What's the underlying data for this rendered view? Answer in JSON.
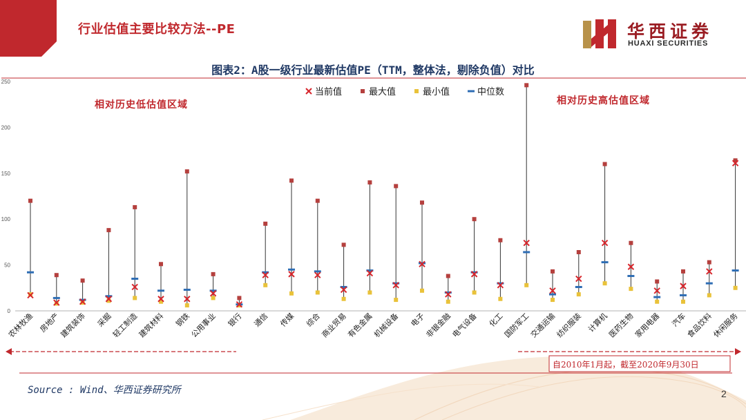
{
  "header": {
    "slide_title": "行业估值主要比较方法--PE",
    "logo_name": "华西证券",
    "logo_en": "HUAXI SECURITIES"
  },
  "colors": {
    "brand_red": "#c0282d",
    "current": "#d7262c",
    "max": "#b5403e",
    "min": "#e9c23a",
    "median": "#2e6db4",
    "title_navy": "#1f3864"
  },
  "legend": {
    "current": "当前值",
    "max": "最大值",
    "min": "最小值",
    "median": "中位数"
  },
  "annotations": {
    "low_zone": "相对历史低估值区域",
    "high_zone": "相对历史高估值区域",
    "date_range": "自2010年1月起，截至2020年9月30日"
  },
  "footer": {
    "source": "Source : Wind、华西证券研究所",
    "page_number": "2"
  },
  "chart_data": {
    "type": "scatter",
    "title": "图表2：A股一级行业最新估值PE（TTM，整体法，剔除负值）对比",
    "ylim": [
      0,
      250
    ],
    "yticks": [
      0,
      50,
      100,
      150,
      200,
      250
    ],
    "grid": false,
    "legend_position": "top-center",
    "categories": [
      "农林牧渔",
      "房地产",
      "建筑装饰",
      "采掘",
      "轻工制造",
      "建筑材料",
      "钢铁",
      "公用事业",
      "银行",
      "通信",
      "传媒",
      "综合",
      "商业贸易",
      "有色金属",
      "机械设备",
      "电子",
      "非银金融",
      "电气设备",
      "化工",
      "国防军工",
      "交通运输",
      "纺织服装",
      "计算机",
      "医药生物",
      "家用电器",
      "汽车",
      "食品饮料",
      "休闲服务"
    ],
    "series": [
      {
        "name": "当前值",
        "values": [
          17,
          9,
          10,
          13,
          26,
          13,
          13,
          19,
          7,
          39,
          40,
          39,
          23,
          41,
          28,
          51,
          18,
          40,
          28,
          74,
          22,
          35,
          74,
          48,
          22,
          27,
          43,
          161
        ]
      },
      {
        "name": "最大值",
        "values": [
          120,
          39,
          33,
          88,
          113,
          51,
          152,
          40,
          14,
          95,
          142,
          120,
          72,
          140,
          136,
          118,
          38,
          100,
          77,
          246,
          43,
          64,
          160,
          74,
          32,
          43,
          53,
          164
        ]
      },
      {
        "name": "最小值",
        "values": [
          18,
          8,
          9,
          11,
          14,
          10,
          6,
          14,
          6,
          28,
          19,
          20,
          13,
          20,
          12,
          22,
          10,
          20,
          13,
          28,
          12,
          18,
          30,
          24,
          10,
          10,
          17,
          25
        ]
      },
      {
        "name": "中位数",
        "values": [
          42,
          14,
          12,
          16,
          35,
          22,
          23,
          22,
          7,
          42,
          45,
          43,
          26,
          44,
          30,
          52,
          20,
          42,
          30,
          64,
          18,
          26,
          53,
          38,
          15,
          17,
          30,
          44
        ]
      }
    ]
  }
}
